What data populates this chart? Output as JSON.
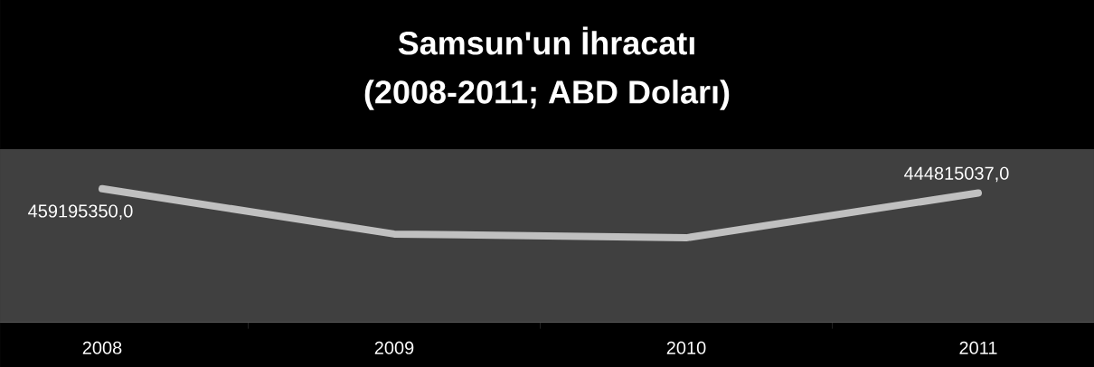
{
  "chart_data": {
    "type": "line",
    "title": "Samsun'un İhracatı",
    "subtitle": "(2008-2011; ABD Doları)",
    "categories": [
      "2008",
      "2009",
      "2010",
      "2011"
    ],
    "values": [
      459195350,
      304000000,
      291000000,
      444815037
    ],
    "value_labels": [
      "459195350,0",
      null,
      null,
      "444815037,0"
    ],
    "color": "#c0c0c0",
    "ylim": [
      0,
      595000000
    ]
  }
}
